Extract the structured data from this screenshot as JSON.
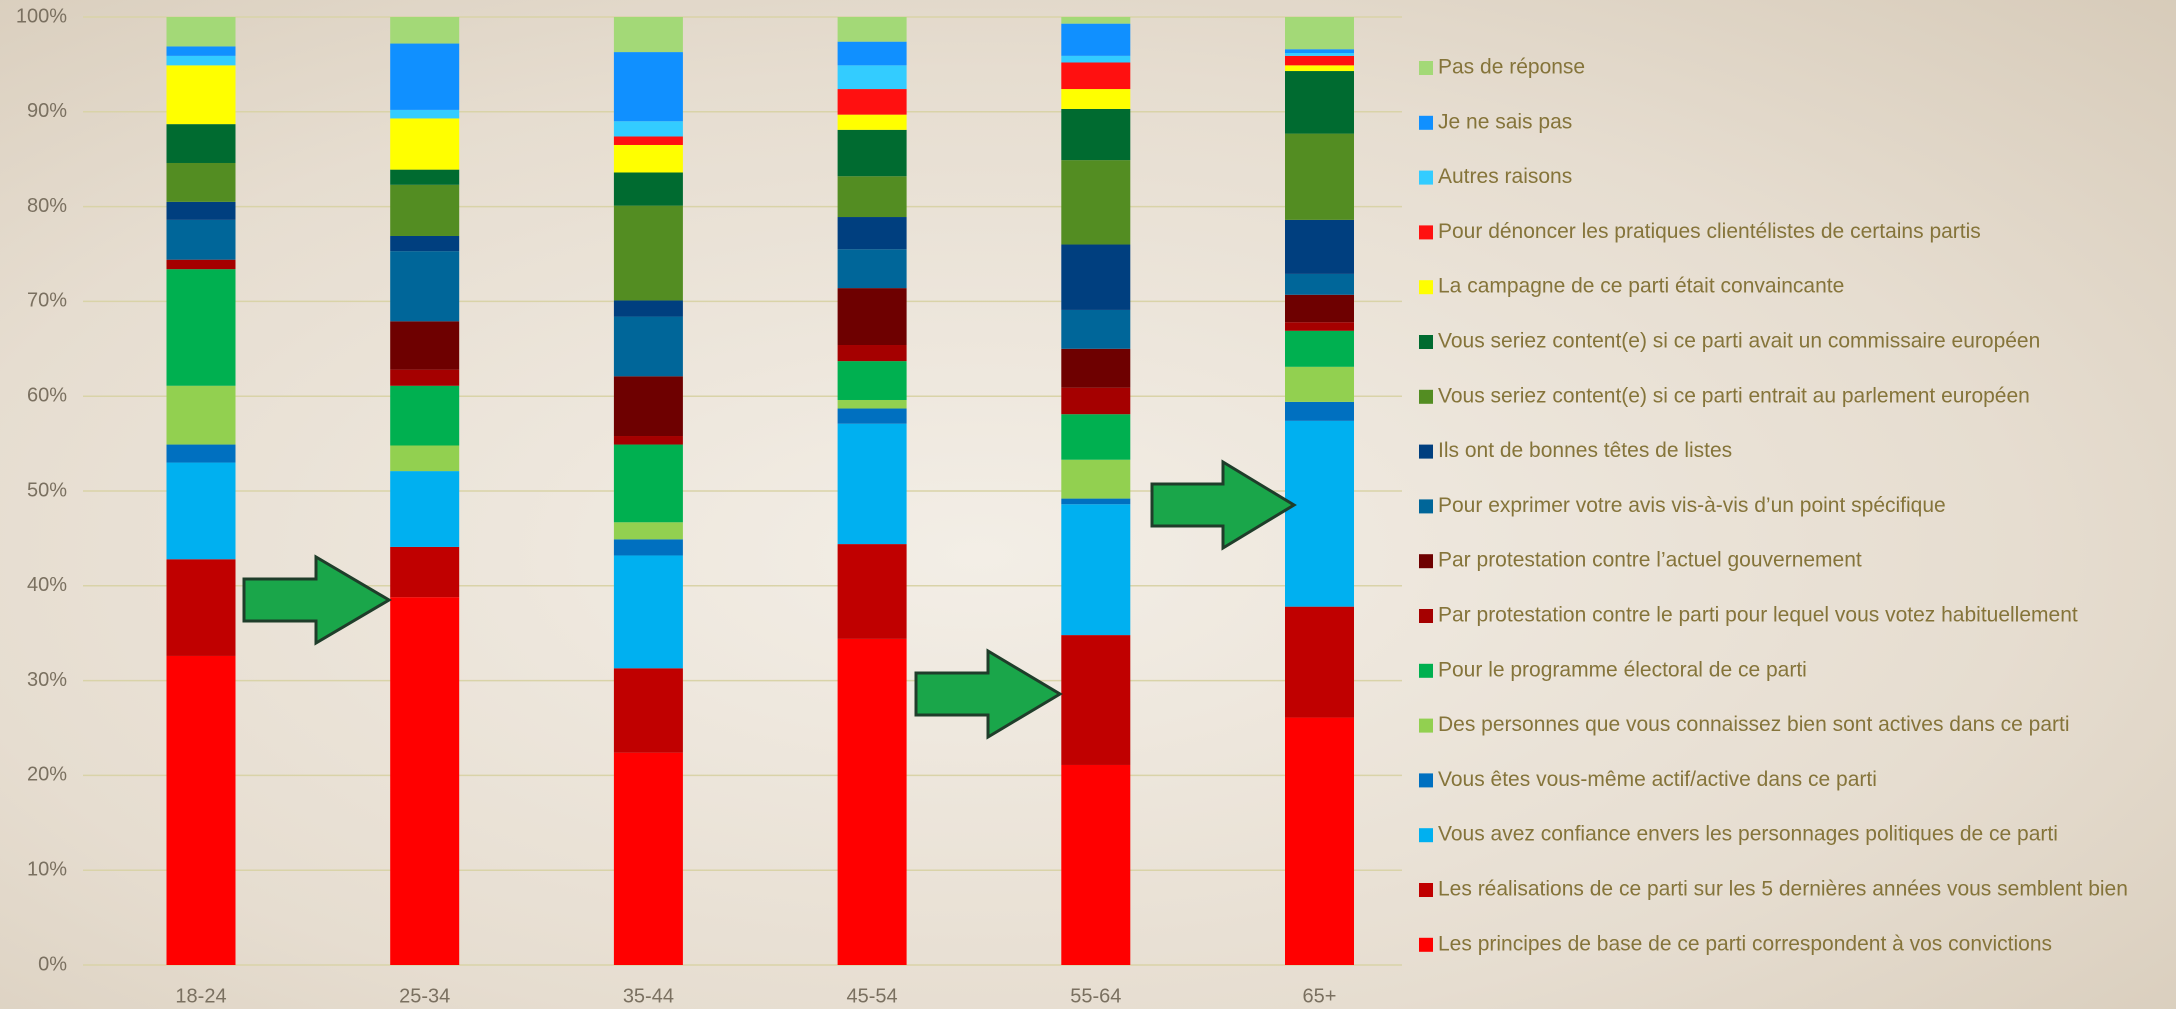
{
  "chart_data": {
    "type": "stacked-bar",
    "categories": [
      "18-24",
      "25-34",
      "35-44",
      "45-54",
      "55-64",
      "65+"
    ],
    "ylim": [
      0,
      100
    ],
    "yticks": [
      {
        "value": 0,
        "label": "0%"
      },
      {
        "value": 10,
        "label": "10%"
      },
      {
        "value": 20,
        "label": "20%"
      },
      {
        "value": 30,
        "label": "30%"
      },
      {
        "value": 40,
        "label": "40%"
      },
      {
        "value": 50,
        "label": "50%"
      },
      {
        "value": 60,
        "label": "60%"
      },
      {
        "value": 70,
        "label": "70%"
      },
      {
        "value": 80,
        "label": "80%"
      },
      {
        "value": 90,
        "label": "90%"
      },
      {
        "value": 100,
        "label": "100%"
      }
    ],
    "grid": true,
    "legend": "right",
    "series": [
      {
        "name": "Les principes de base de ce parti correspondent à vos convictions",
        "color": "#ff0000",
        "values": [
          32.6,
          38.8,
          22.4,
          34.4,
          21.1,
          26.1
        ]
      },
      {
        "name": "Les réalisations de ce parti sur les 5 dernières années vous semblent bien",
        "color": "#c00000",
        "values": [
          10.2,
          5.3,
          8.9,
          10.0,
          13.7,
          11.7
        ]
      },
      {
        "name": "Vous avez confiance envers les personnages politiques de ce parti",
        "color": "#00b0f0",
        "values": [
          10.2,
          8.0,
          11.9,
          12.7,
          13.8,
          19.6
        ]
      },
      {
        "name": "Vous êtes vous-même actif/active dans ce parti",
        "color": "#0070c0",
        "values": [
          1.9,
          0,
          1.7,
          1.6,
          0.6,
          2.0
        ]
      },
      {
        "name": "Des personnes que vous connaissez bien sont actives dans ce parti",
        "color": "#92d050",
        "values": [
          6.2,
          2.7,
          1.8,
          0.9,
          4.1,
          3.7
        ]
      },
      {
        "name": "Pour le programme électoral de ce parti",
        "color": "#00b050",
        "values": [
          12.3,
          6.3,
          8.2,
          4.1,
          4.8,
          3.8
        ]
      },
      {
        "name": "Par protestation contre le parti pour lequel vous votez habituellement",
        "color": "#a50000",
        "values": [
          1.0,
          1.7,
          0.9,
          1.7,
          2.8,
          0.9
        ]
      },
      {
        "name": "Par protestation contre l’actuel gouvernement",
        "color": "#6e0000",
        "values": [
          0,
          5.1,
          6.3,
          6.0,
          4.1,
          2.9
        ]
      },
      {
        "name": "Pour exprimer votre avis vis-à-vis d’un point spécifique",
        "color": "#006699",
        "values": [
          4.2,
          7.4,
          6.3,
          4.1,
          4.1,
          2.2
        ]
      },
      {
        "name": "Ils ont de bonnes têtes de listes",
        "color": "#003f7f",
        "values": [
          1.9,
          1.6,
          1.7,
          3.4,
          6.9,
          5.7
        ]
      },
      {
        "name": "Vous seriez content(e) si ce parti entrait au parlement européen",
        "color": "#538d22",
        "values": [
          4.1,
          5.4,
          10.0,
          4.3,
          8.9,
          9.1
        ]
      },
      {
        "name": "Vous seriez content(e) si ce parti avait un commissaire européen",
        "color": "#006b30",
        "values": [
          4.1,
          1.6,
          3.5,
          4.9,
          5.4,
          6.6
        ]
      },
      {
        "name": "La campagne de ce parti était convaincante",
        "color": "#ffff00",
        "values": [
          6.2,
          5.4,
          2.9,
          1.6,
          2.1,
          0.6
        ]
      },
      {
        "name": "Pour dénoncer les pratiques clientélistes de certains partis",
        "color": "#ff1010",
        "values": [
          0,
          0,
          0.9,
          2.7,
          2.8,
          1.0
        ]
      },
      {
        "name": "Autres raisons",
        "color": "#33ccff",
        "values": [
          1.0,
          0.9,
          1.6,
          2.5,
          0.7,
          0.3
        ]
      },
      {
        "name": "Je ne sais pas",
        "color": "#1090ff",
        "values": [
          1.0,
          7.0,
          7.3,
          2.5,
          3.4,
          0.4
        ]
      },
      {
        "name": "Pas de réponse",
        "color": "#a3d977",
        "values": [
          3.1,
          2.8,
          3.7,
          2.6,
          0.7,
          3.4
        ]
      }
    ]
  }
}
